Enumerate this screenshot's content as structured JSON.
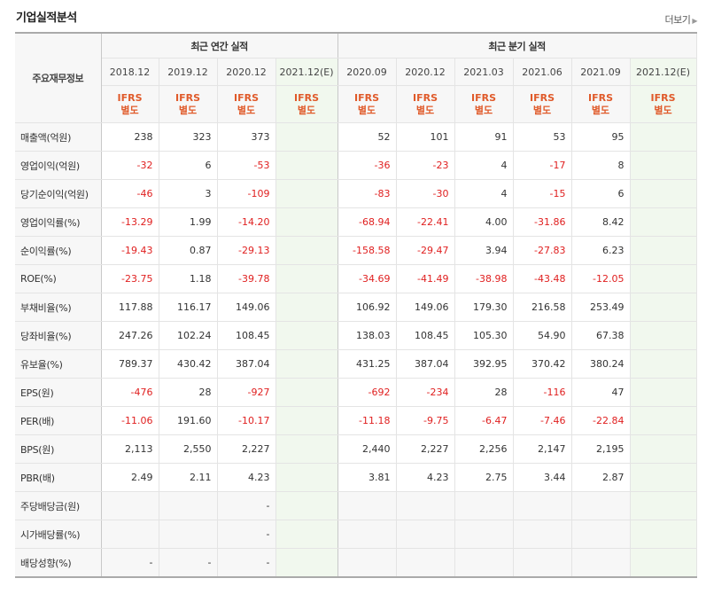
{
  "title": "기업실적분석",
  "more_label": "더보기",
  "header": {
    "label_head": "주요재무정보",
    "annual_group": "최근 연간 실적",
    "quarter_group": "최근 분기 실적",
    "periods": [
      "2018.12",
      "2019.12",
      "2020.12",
      "2021.12(E)",
      "2020.09",
      "2020.12",
      "2021.03",
      "2021.06",
      "2021.09",
      "2021.12(E)"
    ],
    "ifrs_line1": "IFRS",
    "ifrs_line2": "별도"
  },
  "rows": [
    {
      "label": "매출액(억원)",
      "values": [
        "238",
        "323",
        "373",
        "",
        "52",
        "101",
        "91",
        "53",
        "95",
        ""
      ]
    },
    {
      "label": "영업이익(억원)",
      "values": [
        "-32",
        "6",
        "-53",
        "",
        "-36",
        "-23",
        "4",
        "-17",
        "8",
        ""
      ]
    },
    {
      "label": "당기순이익(억원)",
      "values": [
        "-46",
        "3",
        "-109",
        "",
        "-83",
        "-30",
        "4",
        "-15",
        "6",
        ""
      ]
    },
    {
      "label": "영업이익률(%)",
      "values": [
        "-13.29",
        "1.99",
        "-14.20",
        "",
        "-68.94",
        "-22.41",
        "4.00",
        "-31.86",
        "8.42",
        ""
      ]
    },
    {
      "label": "순이익률(%)",
      "values": [
        "-19.43",
        "0.87",
        "-29.13",
        "",
        "-158.58",
        "-29.47",
        "3.94",
        "-27.83",
        "6.23",
        ""
      ]
    },
    {
      "label": "ROE(%)",
      "values": [
        "-23.75",
        "1.18",
        "-39.78",
        "",
        "-34.69",
        "-41.49",
        "-38.98",
        "-43.48",
        "-12.05",
        ""
      ]
    },
    {
      "label": "부채비율(%)",
      "values": [
        "117.88",
        "116.17",
        "149.06",
        "",
        "106.92",
        "149.06",
        "179.30",
        "216.58",
        "253.49",
        ""
      ]
    },
    {
      "label": "당좌비율(%)",
      "values": [
        "247.26",
        "102.24",
        "108.45",
        "",
        "138.03",
        "108.45",
        "105.30",
        "54.90",
        "67.38",
        ""
      ]
    },
    {
      "label": "유보율(%)",
      "values": [
        "789.37",
        "430.42",
        "387.04",
        "",
        "431.25",
        "387.04",
        "392.95",
        "370.42",
        "380.24",
        ""
      ]
    },
    {
      "label": "EPS(원)",
      "values": [
        "-476",
        "28",
        "-927",
        "",
        "-692",
        "-234",
        "28",
        "-116",
        "47",
        ""
      ]
    },
    {
      "label": "PER(배)",
      "values": [
        "-11.06",
        "191.60",
        "-10.17",
        "",
        "-11.18",
        "-9.75",
        "-6.47",
        "-7.46",
        "-22.84",
        ""
      ]
    },
    {
      "label": "BPS(원)",
      "values": [
        "2,113",
        "2,550",
        "2,227",
        "",
        "2,440",
        "2,227",
        "2,256",
        "2,147",
        "2,195",
        ""
      ]
    },
    {
      "label": "PBR(배)",
      "values": [
        "2.49",
        "2.11",
        "4.23",
        "",
        "3.81",
        "4.23",
        "2.75",
        "3.44",
        "2.87",
        ""
      ]
    },
    {
      "label": "주당배당금(원)",
      "values": [
        "",
        "",
        "-",
        "",
        "",
        "",
        "",
        "",
        "",
        ""
      ]
    },
    {
      "label": "시가배당률(%)",
      "values": [
        "",
        "",
        "-",
        "",
        "",
        "",
        "",
        "",
        "",
        ""
      ]
    },
    {
      "label": "배당성향(%)",
      "values": [
        "-",
        "-",
        "-",
        "",
        "",
        "",
        "",
        "",
        "",
        ""
      ]
    }
  ]
}
